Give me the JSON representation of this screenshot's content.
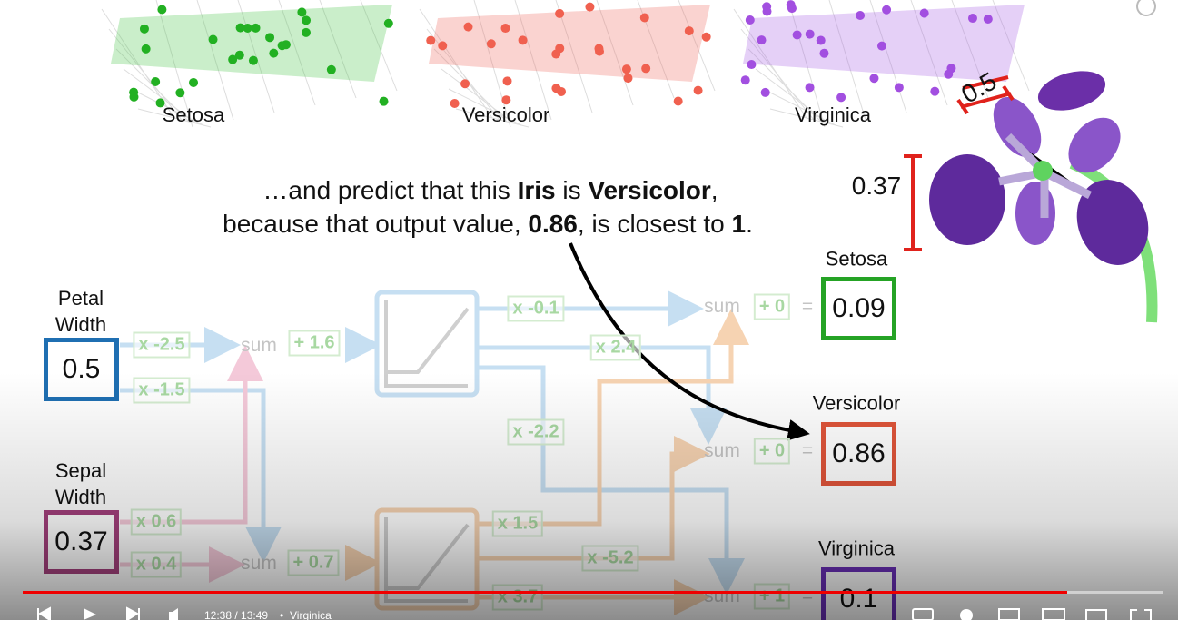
{
  "plot_labels": [
    "Setosa",
    "Versicolor",
    "Virginica"
  ],
  "caption": [
    [
      {
        "text": "…and predict that this ",
        "bold": false
      },
      {
        "text": "Iris",
        "bold": true
      },
      {
        "text": " is ",
        "bold": false
      },
      {
        "text": "Versicolor",
        "bold": true
      },
      {
        "text": ",",
        "bold": false
      }
    ],
    [
      {
        "text": "because that output value, ",
        "bold": false
      },
      {
        "text": "0.86",
        "bold": true
      },
      {
        "text": ", is closest to ",
        "bold": false
      },
      {
        "text": "1",
        "bold": true
      },
      {
        "text": ".",
        "bold": false
      }
    ]
  ],
  "flower_labels": {
    "petal": "0.5",
    "sepal": "0.37"
  },
  "inputs": [
    {
      "name": "Petal Width",
      "value": "0.5",
      "color": "#1f6fb2"
    },
    {
      "name": "Sepal Width",
      "value": "0.37",
      "color": "#a3407c"
    }
  ],
  "weights": [
    "x -2.5",
    "x -1.5",
    "x 0.6",
    "x 0.4",
    "x -0.1",
    "x 2.4",
    "x -2.2",
    "x 1.5",
    "x -5.2",
    "x 3.7"
  ],
  "hidden_sums": [
    "sum",
    "sum"
  ],
  "hidden_biases": [
    "+ 1.6",
    "+ 0.7"
  ],
  "output_sums": [
    "sum",
    "sum",
    "sum"
  ],
  "output_biases": [
    "+ 0",
    "+ 0",
    "+ 1"
  ],
  "equals": [
    "=",
    "=",
    "="
  ],
  "outputs": [
    {
      "label": "Setosa",
      "value": "0.09",
      "color": "#25a325"
    },
    {
      "label": "Versicolor",
      "value": "0.86",
      "color": "#e0553a"
    },
    {
      "label": "Virginica",
      "value": "0.1",
      "color": "#6a2fb8"
    }
  ],
  "player": {
    "time": "12:38 / 13:49",
    "separator": "•",
    "chapter": "Virginica"
  }
}
